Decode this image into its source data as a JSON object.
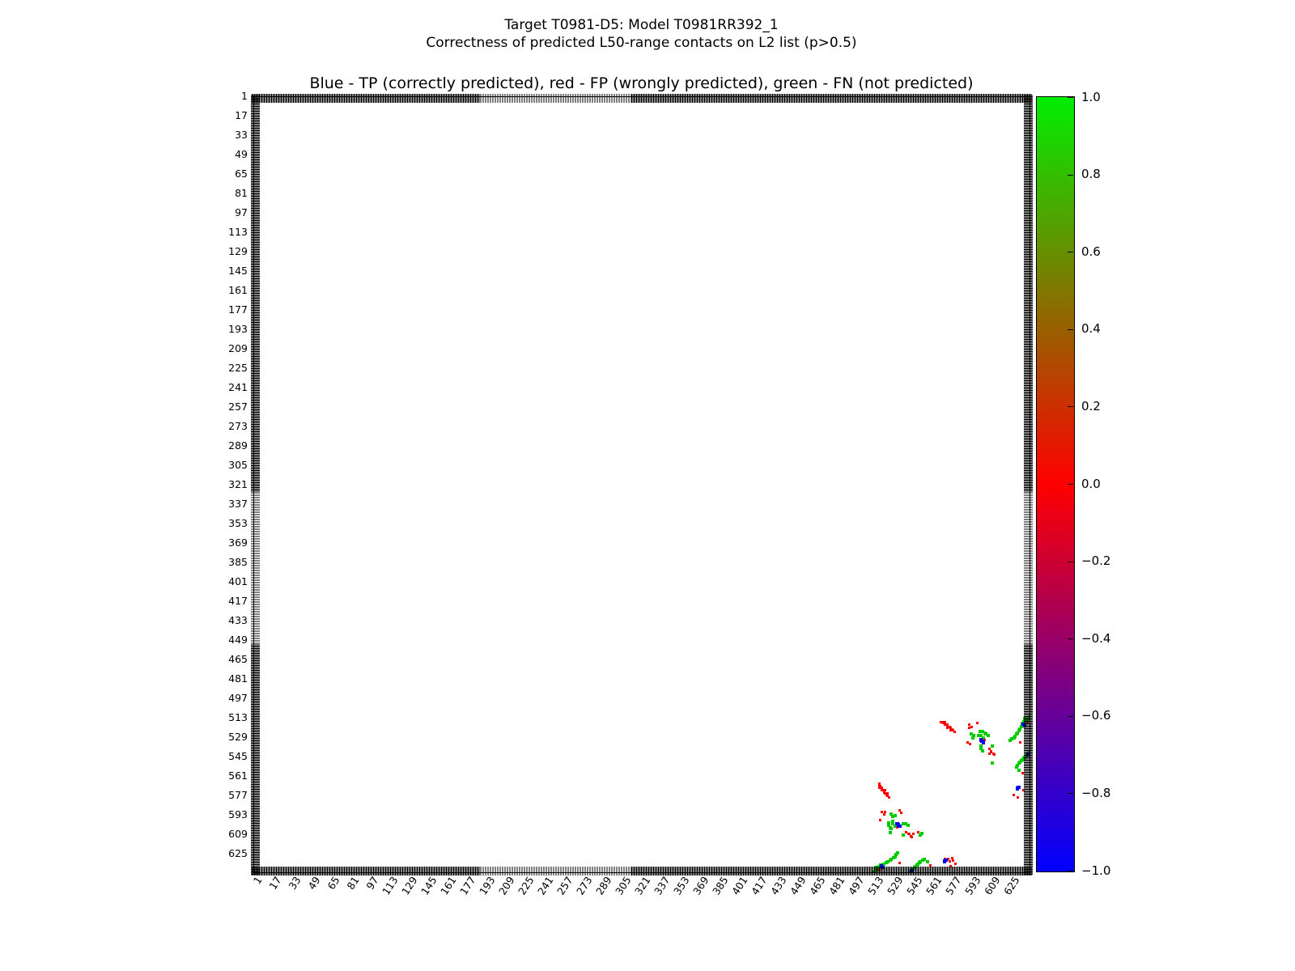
{
  "suptitle": {
    "line1": "Target T0981-D5: Model T0981RR392_1",
    "line2": "Correctness of predicted L50-range contacts on L2 list (p>0.5)"
  },
  "chart_data": {
    "type": "scatter",
    "title": "Blue - TP (correctly predicted), red - FP (wrongly predicted), green - FN (not predicted)",
    "grid": false,
    "x_axis": {
      "range": [
        1,
        640
      ],
      "tick_labels": [
        1,
        17,
        33,
        49,
        65,
        81,
        97,
        113,
        129,
        145,
        161,
        177,
        193,
        209,
        225,
        241,
        257,
        273,
        289,
        305,
        321,
        337,
        353,
        369,
        385,
        401,
        417,
        433,
        449,
        465,
        481,
        497,
        513,
        529,
        545,
        561,
        577,
        593,
        609,
        625
      ],
      "tick_rotation_deg": 57
    },
    "y_axis": {
      "range": [
        1,
        640
      ],
      "inverted": true,
      "tick_labels": [
        1,
        17,
        33,
        49,
        65,
        81,
        97,
        113,
        129,
        145,
        161,
        177,
        193,
        209,
        225,
        241,
        257,
        273,
        289,
        305,
        321,
        337,
        353,
        369,
        385,
        401,
        417,
        433,
        449,
        465,
        481,
        497,
        513,
        529,
        545,
        561,
        577,
        593,
        609,
        625
      ]
    },
    "colorbar": {
      "min": -1.0,
      "max": 1.0,
      "tick_labels": [
        "1.0",
        "0.8",
        "0.6",
        "0.4",
        "0.2",
        "0.0",
        "−0.2",
        "−0.4",
        "−0.6",
        "−0.8",
        "−1.0"
      ],
      "gradient_stops": [
        "#00ee00",
        "#ff0000",
        "#0000ff"
      ]
    },
    "series": [
      {
        "key": "FN",
        "name": "FN (not predicted)",
        "color": "#00cc00",
        "points": [
          [
            599,
            524
          ],
          [
            601,
            524
          ],
          [
            603,
            525
          ],
          [
            604,
            526
          ],
          [
            606,
            527
          ],
          [
            600,
            527
          ],
          [
            598,
            527
          ],
          [
            592,
            526
          ],
          [
            594,
            527
          ],
          [
            593,
            529
          ],
          [
            602,
            529
          ],
          [
            600,
            536
          ],
          [
            600,
            538
          ],
          [
            601,
            540
          ],
          [
            609,
            536
          ],
          [
            524,
            599
          ],
          [
            524,
            601
          ],
          [
            525,
            603
          ],
          [
            526,
            604
          ],
          [
            525,
            607
          ],
          [
            527,
            600
          ],
          [
            527,
            598
          ],
          [
            526,
            592
          ],
          [
            527,
            594
          ],
          [
            529,
            593
          ],
          [
            529,
            602
          ],
          [
            536,
            600
          ],
          [
            538,
            600
          ],
          [
            540,
            601
          ],
          [
            551,
            608
          ],
          [
            536,
            609
          ],
          [
            640,
            512
          ],
          [
            639,
            513
          ],
          [
            638,
            514
          ],
          [
            637,
            515
          ],
          [
            636,
            513
          ],
          [
            635,
            516
          ],
          [
            634,
            517
          ],
          [
            633,
            520
          ],
          [
            632,
            522
          ],
          [
            631,
            523
          ],
          [
            630,
            525
          ],
          [
            629,
            526
          ],
          [
            628,
            528
          ],
          [
            627,
            529
          ],
          [
            625,
            530
          ],
          [
            624,
            531
          ],
          [
            512,
            640
          ],
          [
            513,
            639
          ],
          [
            514,
            638
          ],
          [
            515,
            637
          ],
          [
            513,
            636
          ],
          [
            516,
            635
          ],
          [
            517,
            634
          ],
          [
            520,
            633
          ],
          [
            522,
            632
          ],
          [
            523,
            631
          ],
          [
            525,
            630
          ],
          [
            526,
            629
          ],
          [
            528,
            628
          ],
          [
            529,
            627
          ],
          [
            530,
            625
          ],
          [
            531,
            624
          ],
          [
            640,
            541
          ],
          [
            639,
            542
          ],
          [
            638,
            543
          ],
          [
            637,
            544
          ],
          [
            636,
            545
          ],
          [
            635,
            546
          ],
          [
            634,
            547
          ],
          [
            633,
            548
          ],
          [
            632,
            549
          ],
          [
            631,
            550
          ],
          [
            630,
            552
          ],
          [
            629,
            553
          ],
          [
            609,
            550
          ],
          [
            631,
            556
          ],
          [
            541,
            640
          ],
          [
            542,
            639
          ],
          [
            543,
            638
          ],
          [
            544,
            637
          ],
          [
            545,
            636
          ],
          [
            546,
            635
          ],
          [
            547,
            634
          ],
          [
            548,
            633
          ],
          [
            549,
            632
          ],
          [
            550,
            631
          ],
          [
            552,
            630
          ],
          [
            553,
            629
          ],
          [
            550,
            609
          ],
          [
            556,
            631
          ]
        ]
      },
      {
        "key": "FP",
        "name": "FP (wrongly predicted)",
        "color": "#ff0000",
        "points": [
          [
            567,
            516
          ],
          [
            568,
            516
          ],
          [
            569,
            516
          ],
          [
            570,
            516
          ],
          [
            569,
            517
          ],
          [
            570,
            518
          ],
          [
            571,
            518
          ],
          [
            572,
            518
          ],
          [
            572,
            519
          ],
          [
            573,
            520
          ],
          [
            574,
            520
          ],
          [
            575,
            521
          ],
          [
            572,
            521
          ],
          [
            576,
            522
          ],
          [
            575,
            523
          ],
          [
            577,
            523
          ],
          [
            578,
            524
          ],
          [
            516,
            567
          ],
          [
            516,
            568
          ],
          [
            516,
            569
          ],
          [
            516,
            570
          ],
          [
            517,
            569
          ],
          [
            518,
            570
          ],
          [
            518,
            571
          ],
          [
            518,
            572
          ],
          [
            519,
            572
          ],
          [
            520,
            573
          ],
          [
            520,
            574
          ],
          [
            521,
            575
          ],
          [
            521,
            572
          ],
          [
            522,
            576
          ],
          [
            523,
            575
          ],
          [
            523,
            577
          ],
          [
            524,
            578
          ],
          [
            590,
            518
          ],
          [
            592,
            520
          ],
          [
            597,
            517
          ],
          [
            589,
            533
          ],
          [
            591,
            534
          ],
          [
            603,
            531
          ],
          [
            607,
            538
          ],
          [
            608,
            540
          ],
          [
            610,
            542
          ],
          [
            607,
            542
          ],
          [
            590,
            521
          ],
          [
            518,
            590
          ],
          [
            520,
            592
          ],
          [
            517,
            597
          ],
          [
            533,
            589
          ],
          [
            534,
            591
          ],
          [
            531,
            603
          ],
          [
            538,
            607
          ],
          [
            540,
            608
          ],
          [
            542,
            610
          ],
          [
            521,
            590
          ],
          [
            544,
            608
          ],
          [
            548,
            607
          ],
          [
            632,
            533
          ],
          [
            608,
            541
          ],
          [
            611,
            543
          ],
          [
            635,
            572
          ],
          [
            627,
            576
          ],
          [
            630,
            578
          ],
          [
            634,
            558
          ],
          [
            638,
            516
          ],
          [
            533,
            632
          ],
          [
            541,
            608
          ],
          [
            543,
            611
          ],
          [
            570,
            629
          ],
          [
            573,
            629
          ],
          [
            574,
            631
          ],
          [
            576,
            628
          ],
          [
            577,
            630
          ],
          [
            579,
            633
          ],
          [
            575,
            635
          ],
          [
            558,
            634
          ],
          [
            516,
            638
          ]
        ]
      },
      {
        "key": "TP",
        "name": "TP (correctly predicted)",
        "color": "#0000ee",
        "points": [
          [
            600,
            531
          ],
          [
            601,
            532
          ],
          [
            602,
            533
          ],
          [
            531,
            600
          ],
          [
            532,
            601
          ],
          [
            533,
            602
          ],
          [
            635,
            518
          ],
          [
            636,
            519
          ],
          [
            518,
            635
          ],
          [
            519,
            636
          ],
          [
            631,
            570
          ],
          [
            570,
            631
          ],
          [
            571,
            630
          ],
          [
            630,
            571
          ],
          [
            543,
            639
          ],
          [
            639,
            543
          ]
        ]
      }
    ]
  }
}
